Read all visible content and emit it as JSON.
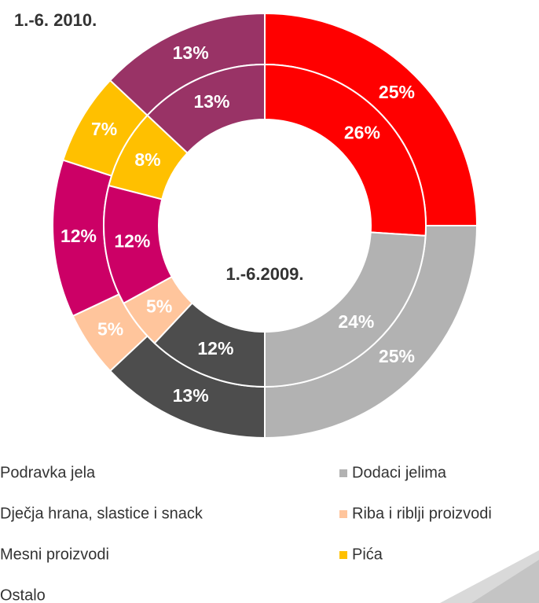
{
  "chart_data": {
    "type": "donut",
    "categories": [
      "Podravka jela",
      "Dodaci jelima",
      "Ostalo",
      "Riba i riblji proizvodi",
      "Mesni proizvodi",
      "Pića",
      "Dječja hrana, slastice i snack"
    ],
    "colors": [
      "#ff0000",
      "#b2b2b2",
      "#4d4d4d",
      "#ffc59c",
      "#cc0066",
      "#ffc000",
      "#993366"
    ],
    "series": [
      {
        "name": "1.-6. 2010.",
        "values": [
          25,
          25,
          13,
          5,
          12,
          7,
          13
        ],
        "value_labels": [
          "25%",
          "25%",
          "13%",
          "5%",
          "12%",
          "7%",
          "13%"
        ]
      },
      {
        "name": "1.-6.2009.",
        "values": [
          26,
          24,
          12,
          5,
          12,
          8,
          13
        ],
        "value_labels": [
          "26%",
          "24%",
          "12%",
          "5%",
          "12%",
          "8%",
          "13%"
        ]
      }
    ]
  }
}
